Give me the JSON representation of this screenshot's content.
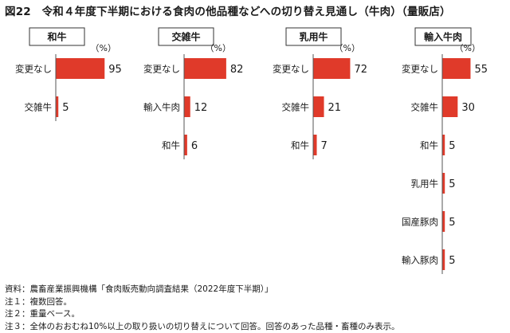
{
  "title": "図22　令和４年度下半期における食肉の他品種などへの切り替え見通し（牛肉）（量販店）",
  "chart_data": [
    {
      "type": "bar",
      "orientation": "horizontal",
      "title": "和牛",
      "unit": "（%）",
      "categories": [
        "変更なし",
        "交雑牛"
      ],
      "values": [
        95,
        5
      ],
      "bar_color": "#e03a2a"
    },
    {
      "type": "bar",
      "orientation": "horizontal",
      "title": "交雑牛",
      "unit": "（%）",
      "categories": [
        "変更なし",
        "輸入牛肉",
        "和牛"
      ],
      "values": [
        82,
        12,
        6
      ],
      "bar_color": "#e03a2a"
    },
    {
      "type": "bar",
      "orientation": "horizontal",
      "title": "乳用牛",
      "unit": "（%）",
      "categories": [
        "変更なし",
        "交雑牛",
        "和牛"
      ],
      "values": [
        72,
        21,
        7
      ],
      "bar_color": "#e03a2a"
    },
    {
      "type": "bar",
      "orientation": "horizontal",
      "title": "輸入牛肉",
      "unit": "（%）",
      "categories": [
        "変更なし",
        "交雑牛",
        "和牛",
        "乳用牛",
        "国産豚肉",
        "輸入豚肉"
      ],
      "values": [
        55,
        30,
        5,
        5,
        5,
        5
      ],
      "bar_color": "#e03a2a"
    }
  ],
  "notes": [
    "資料：農畜産業振興機構「食肉販売動向調査結果（2022年度下半期）」",
    "注１：複数回答。",
    "注２：重量ベース。",
    "注３：全体のおおむね10%以上の取り扱いの切り替えについて回答。回答のあった品種・畜種のみ表示。"
  ]
}
